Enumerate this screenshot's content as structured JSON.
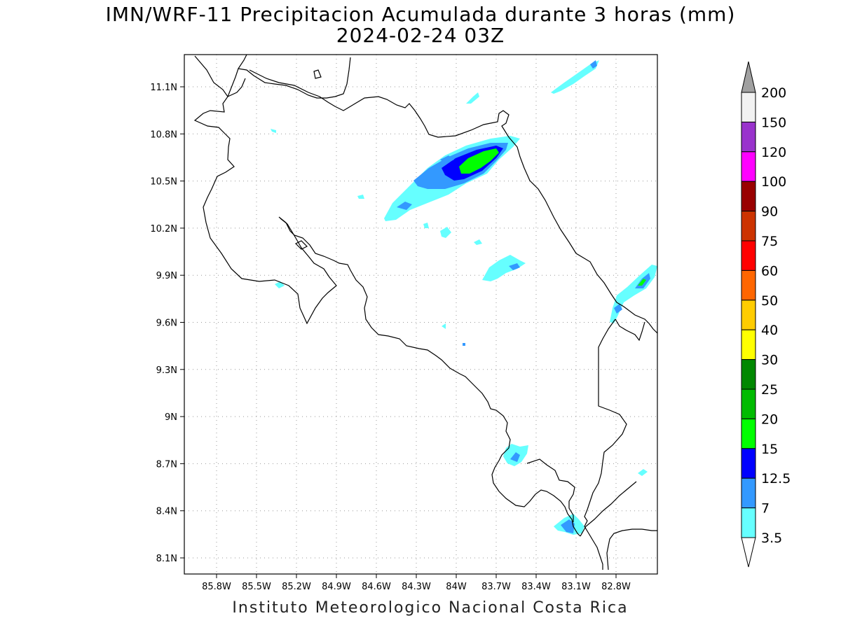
{
  "title": {
    "line1": "IMN/WRF-11 Precipitacion Acumulada durante 3 horas (mm)",
    "line2": "2024-02-24 03Z"
  },
  "footer": "Instituto Meteorologico Nacional Costa Rica",
  "map": {
    "x_ticks": [
      "85.8W",
      "85.5W",
      "85.2W",
      "84.9W",
      "84.6W",
      "84.3W",
      "84W",
      "83.7W",
      "83.4W",
      "83.1W",
      "82.8W"
    ],
    "y_ticks": [
      "11.1N",
      "10.8N",
      "10.5N",
      "10.2N",
      "9.9N",
      "9.6N",
      "9.3N",
      "9N",
      "8.7N",
      "8.4N",
      "8.1N"
    ],
    "grid": true,
    "gridline_style": "dotted"
  },
  "colorbar": {
    "labels": [
      "200",
      "150",
      "120",
      "100",
      "90",
      "75",
      "60",
      "50",
      "40",
      "30",
      "25",
      "20",
      "15",
      "12.5",
      "7",
      "3.5"
    ],
    "colors": [
      "#a0a0a0",
      "#f2f2f2",
      "#9933cc",
      "#ff00ff",
      "#990000",
      "#cc3300",
      "#ff0000",
      "#ff6600",
      "#ffcc00",
      "#ffff00",
      "#008800",
      "#00bb00",
      "#00ff00",
      "#0000ff",
      "#3399ff",
      "#66ffff",
      "#ffffff"
    ]
  },
  "precipitation_levels": {
    "light": "#66ffff",
    "moderate": "#3399ff",
    "heavy": "#0000ff",
    "very_heavy": "#00ff00"
  }
}
